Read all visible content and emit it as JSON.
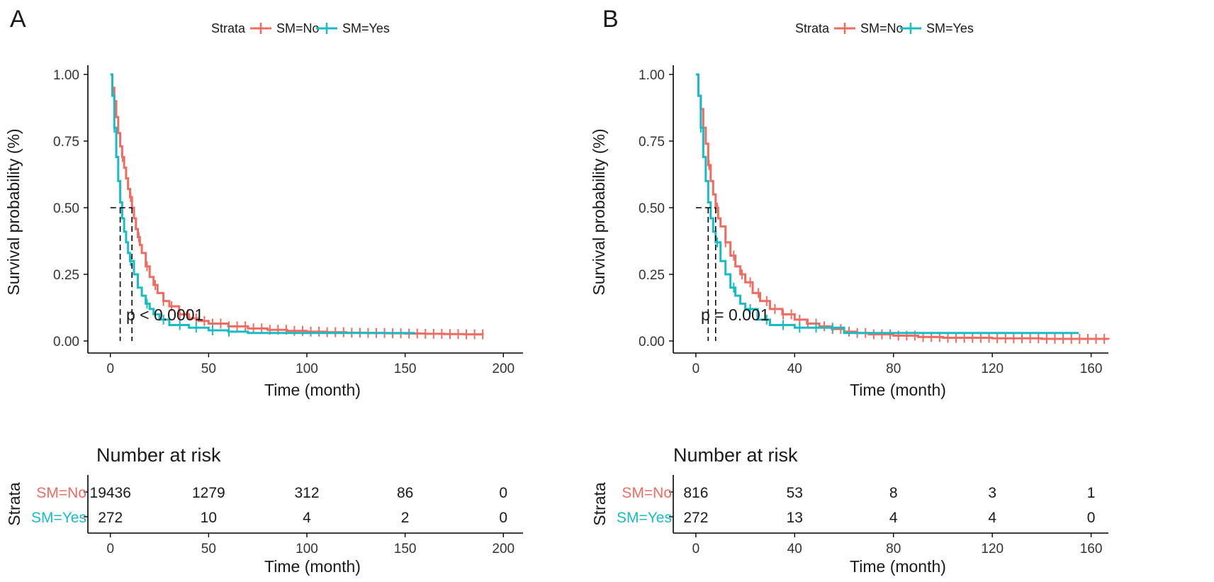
{
  "colors": {
    "no": "#f06c61",
    "yes": "#17bcc4",
    "median": "#000000"
  },
  "chart_data": [
    {
      "panel": "A",
      "type": "line",
      "subtype": "kaplan-meier",
      "legend": {
        "title": "Strata",
        "entries": [
          "SM=No",
          "SM=Yes"
        ]
      },
      "ylabel": "Survival probability (%)",
      "xlabel": "Time (month)",
      "xlim": [
        -10,
        210
      ],
      "ylim": [
        0,
        1
      ],
      "xticks": [
        0,
        50,
        100,
        150,
        200
      ],
      "yticks": [
        "0.00",
        "0.25",
        "0.50",
        "0.75",
        "1.00"
      ],
      "pvalue": "p < 0.0001",
      "median_survival": {
        "no": 11,
        "yes": 5
      },
      "series": [
        {
          "name": "SM=No",
          "x": [
            0,
            1,
            2,
            3,
            4,
            5,
            6,
            7,
            8,
            9,
            10,
            11,
            12,
            13,
            14,
            15,
            16,
            18,
            20,
            22,
            24,
            27,
            30,
            35,
            40,
            45,
            50,
            60,
            70,
            80,
            90,
            100,
            110,
            120,
            130,
            140,
            150,
            160,
            170,
            180,
            190
          ],
          "y": [
            1.0,
            0.95,
            0.9,
            0.84,
            0.78,
            0.73,
            0.69,
            0.65,
            0.61,
            0.57,
            0.54,
            0.5,
            0.46,
            0.42,
            0.39,
            0.36,
            0.33,
            0.28,
            0.24,
            0.21,
            0.18,
            0.15,
            0.13,
            0.1,
            0.085,
            0.075,
            0.065,
            0.055,
            0.047,
            0.042,
            0.038,
            0.035,
            0.033,
            0.031,
            0.03,
            0.029,
            0.028,
            0.027,
            0.026,
            0.025,
            0.025
          ]
        },
        {
          "name": "SM=Yes",
          "x": [
            0,
            1,
            2,
            3,
            4,
            5,
            6,
            7,
            8,
            9,
            10,
            12,
            14,
            16,
            18,
            20,
            22,
            25,
            30,
            40,
            50,
            60,
            70,
            100,
            130,
            150,
            155
          ],
          "y": [
            1.0,
            0.92,
            0.8,
            0.69,
            0.6,
            0.52,
            0.46,
            0.41,
            0.37,
            0.33,
            0.3,
            0.25,
            0.2,
            0.17,
            0.14,
            0.12,
            0.1,
            0.08,
            0.06,
            0.05,
            0.04,
            0.035,
            0.03,
            0.03,
            0.03,
            0.03,
            0.03
          ]
        }
      ],
      "risk_table": {
        "title": "Number at risk",
        "ylabel": "Strata",
        "xlabel": "Time (month)",
        "times": [
          0,
          50,
          100,
          150,
          200
        ],
        "rows": [
          {
            "label": "SM=No",
            "values": [
              "19436",
              "1279",
              "312",
              "86",
              "0"
            ]
          },
          {
            "label": "SM=Yes",
            "values": [
              "272",
              "10",
              "4",
              "2",
              "0"
            ]
          }
        ]
      }
    },
    {
      "panel": "B",
      "type": "line",
      "subtype": "kaplan-meier",
      "legend": {
        "title": "Strata",
        "entries": [
          "SM=No",
          "SM=Yes"
        ]
      },
      "ylabel": "Survival probability (%)",
      "xlabel": "Time (month)",
      "xlim": [
        -8,
        167
      ],
      "ylim": [
        0,
        1
      ],
      "xticks": [
        0,
        40,
        80,
        120,
        160
      ],
      "yticks": [
        "0.00",
        "0.25",
        "0.50",
        "0.75",
        "1.00"
      ],
      "pvalue": "p = 0.001",
      "median_survival": {
        "no": 8,
        "yes": 5
      },
      "series": [
        {
          "name": "SM=No",
          "x": [
            0,
            1,
            2,
            3,
            4,
            5,
            6,
            7,
            8,
            9,
            10,
            12,
            14,
            16,
            18,
            20,
            23,
            26,
            30,
            35,
            40,
            45,
            50,
            55,
            60,
            65,
            70,
            80,
            90,
            100,
            120,
            140,
            167
          ],
          "y": [
            1.0,
            0.92,
            0.87,
            0.8,
            0.74,
            0.66,
            0.6,
            0.55,
            0.5,
            0.46,
            0.43,
            0.37,
            0.32,
            0.28,
            0.25,
            0.22,
            0.18,
            0.15,
            0.12,
            0.1,
            0.08,
            0.065,
            0.055,
            0.045,
            0.035,
            0.03,
            0.025,
            0.02,
            0.015,
            0.012,
            0.01,
            0.008,
            0.005
          ]
        },
        {
          "name": "SM=Yes",
          "x": [
            0,
            1,
            2,
            3,
            4,
            5,
            6,
            7,
            8,
            10,
            12,
            14,
            16,
            18,
            20,
            25,
            30,
            40,
            50,
            60,
            65,
            80,
            120,
            130,
            155
          ],
          "y": [
            1.0,
            0.92,
            0.8,
            0.69,
            0.6,
            0.52,
            0.46,
            0.41,
            0.37,
            0.3,
            0.25,
            0.2,
            0.17,
            0.14,
            0.12,
            0.08,
            0.06,
            0.05,
            0.05,
            0.03,
            0.03,
            0.03,
            0.03,
            0.03,
            0.03
          ]
        }
      ],
      "risk_table": {
        "title": "Number at risk",
        "ylabel": "Strata",
        "xlabel": "Time (month)",
        "times": [
          0,
          40,
          80,
          120,
          160
        ],
        "rows": [
          {
            "label": "SM=No",
            "values": [
              "816",
              "53",
              "8",
              "3",
              "1"
            ]
          },
          {
            "label": "SM=Yes",
            "values": [
              "272",
              "13",
              "4",
              "4",
              "0"
            ]
          }
        ]
      }
    }
  ]
}
